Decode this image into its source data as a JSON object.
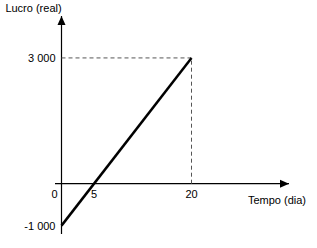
{
  "chart_data": {
    "type": "line",
    "x_label": "Tempo (dia)",
    "y_label": "Lucro (real)",
    "x": [
      0,
      20
    ],
    "values": [
      -1000,
      3000
    ],
    "color": "#000000",
    "xlim": [
      -1,
      35
    ],
    "ylim": [
      -1200,
      4000
    ],
    "xticks": [
      0,
      5,
      20
    ],
    "yticks": [
      {
        "value": -1000,
        "label": "-1 000"
      },
      {
        "value": 3000,
        "label": "3 000"
      }
    ],
    "grid": false
  }
}
